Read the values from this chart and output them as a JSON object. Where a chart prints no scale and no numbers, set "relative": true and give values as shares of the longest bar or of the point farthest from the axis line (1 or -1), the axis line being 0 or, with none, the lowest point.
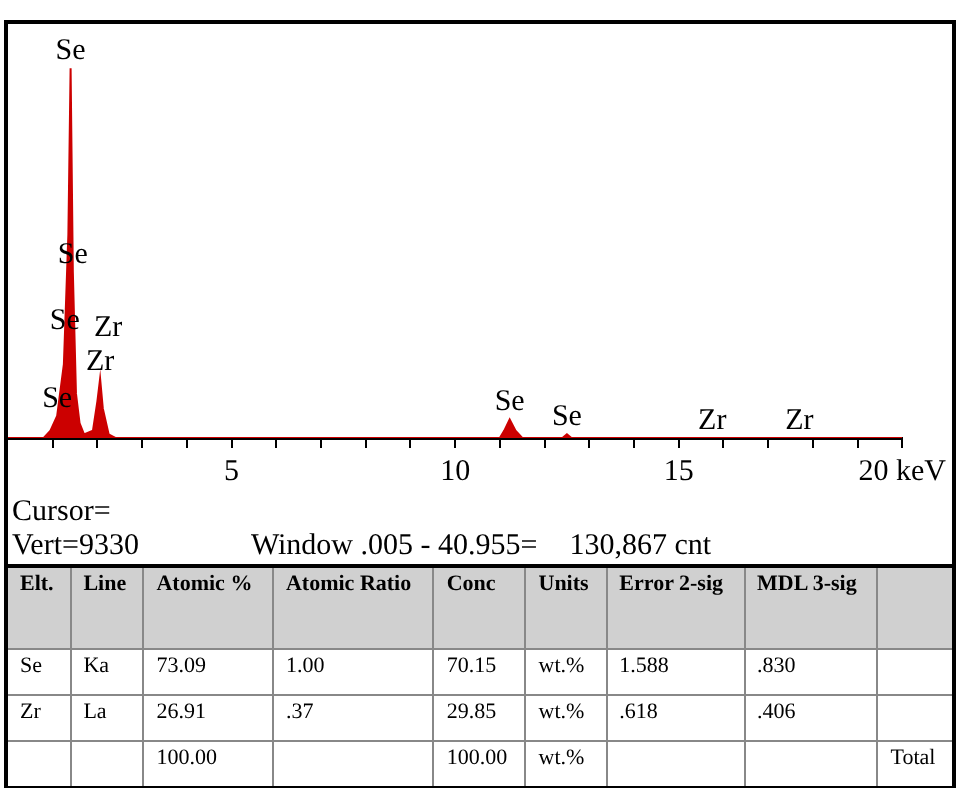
{
  "chart_data": [
    {
      "type": "area",
      "relative": true,
      "color": "#cc0000",
      "grid": false,
      "legend": false,
      "x": [
        0,
        0.8,
        0.95,
        1.1,
        1.25,
        1.27,
        1.35,
        1.4,
        1.45,
        1.52,
        1.6,
        1.7,
        1.9,
        2.0,
        2.06,
        2.12,
        2.25,
        2.4,
        11.0,
        11.1,
        11.22,
        11.35,
        11.5,
        12.4,
        12.5,
        12.6,
        15.75,
        17.7,
        20
      ],
      "values": [
        0,
        0,
        0.02,
        0.06,
        0.2,
        0.27,
        0.55,
        1.0,
        0.45,
        0.12,
        0.04,
        0.01,
        0.02,
        0.1,
        0.16,
        0.08,
        0.01,
        0,
        0,
        0.02,
        0.05,
        0.02,
        0,
        0,
        0.01,
        0,
        0,
        0,
        0
      ],
      "xlim": [
        0,
        20
      ],
      "xticks": [
        {
          "value": 1,
          "label": null
        },
        {
          "value": 2,
          "label": null
        },
        {
          "value": 3,
          "label": null
        },
        {
          "value": 4,
          "label": null
        },
        5,
        {
          "value": 6,
          "label": null
        },
        {
          "value": 7,
          "label": null
        },
        {
          "value": 8,
          "label": null
        },
        {
          "value": 9,
          "label": null
        },
        10,
        {
          "value": 11,
          "label": null
        },
        {
          "value": 12,
          "label": null
        },
        {
          "value": 13,
          "label": null
        },
        {
          "value": 14,
          "label": null
        },
        15,
        {
          "value": 16,
          "label": null
        },
        {
          "value": 17,
          "label": null
        },
        {
          "value": 18,
          "label": null
        },
        {
          "value": 19,
          "label": null
        },
        {
          "value": 20,
          "label": "20 keV"
        }
      ],
      "tick_labels": "x",
      "annotations": [
        {
          "text": "Se",
          "x": 1.4,
          "y": 1.0
        },
        {
          "text": "Se",
          "x": 1.45,
          "y": 0.45
        },
        {
          "text": "Se",
          "x": 1.27,
          "y": 0.27
        },
        {
          "text": "Zr",
          "x": 2.06,
          "y": 0.16
        },
        {
          "text": "Se",
          "x": 1.1,
          "y": 0.06
        },
        {
          "text": "Zr",
          "x": 2.06,
          "y": 0.16
        },
        {
          "text": "Se",
          "x": 11.22,
          "y": 0.05
        },
        {
          "text": "Se",
          "x": 12.5,
          "y": 0.01
        },
        {
          "text": "Zr",
          "x": 15.75,
          "y": 0
        },
        {
          "text": "Zr",
          "x": 17.7,
          "y": 0
        },
        "Cursor=",
        "Vert=9330",
        "Window .005 - 40.955=",
        "130,867 cnt"
      ]
    },
    {
      "type": "other",
      "categories": [
        "Elt.",
        "Line",
        "Atomic %",
        "Atomic Ratio",
        "Conc",
        "Units",
        "Error 2-sig",
        "MDL 3-sig",
        null
      ],
      "cell_labels": [
        [
          "Se",
          "Ka",
          "73.09",
          "1.00",
          "70.15",
          "wt.%",
          "1.588",
          ".830",
          null
        ],
        [
          "Zr",
          "La",
          "26.91",
          ".37",
          "29.85",
          "wt.%",
          ".618",
          ".406",
          null
        ],
        [
          null,
          null,
          "100.00",
          null,
          "100.00",
          "wt.%",
          null,
          null,
          "Total"
        ]
      ]
    }
  ]
}
